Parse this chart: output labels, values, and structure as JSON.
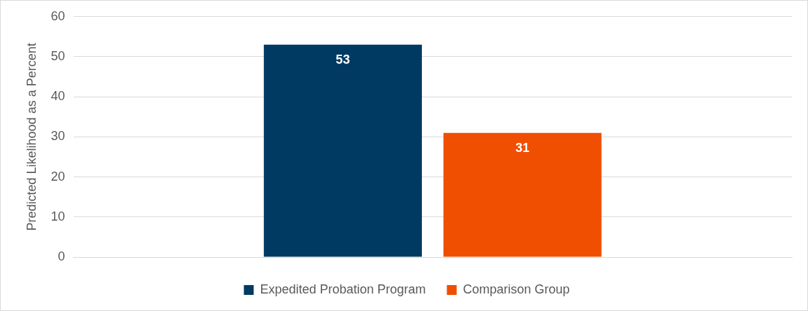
{
  "chart_data": {
    "type": "bar",
    "ylabel": "Predicted Likelihood as a Percent",
    "categories": [
      null
    ],
    "series": [
      {
        "name": "Expedited Probation Program",
        "color": "#003a63",
        "values": [
          53
        ]
      },
      {
        "name": "Comparison Group",
        "color": "#f04e00",
        "values": [
          31
        ]
      }
    ],
    "ylim": [
      0,
      60
    ],
    "yticks": [
      0,
      10,
      20,
      30,
      40,
      50,
      60
    ],
    "grid": "y",
    "legend": "bottom",
    "data_labels": true,
    "tick_labels": "y"
  }
}
